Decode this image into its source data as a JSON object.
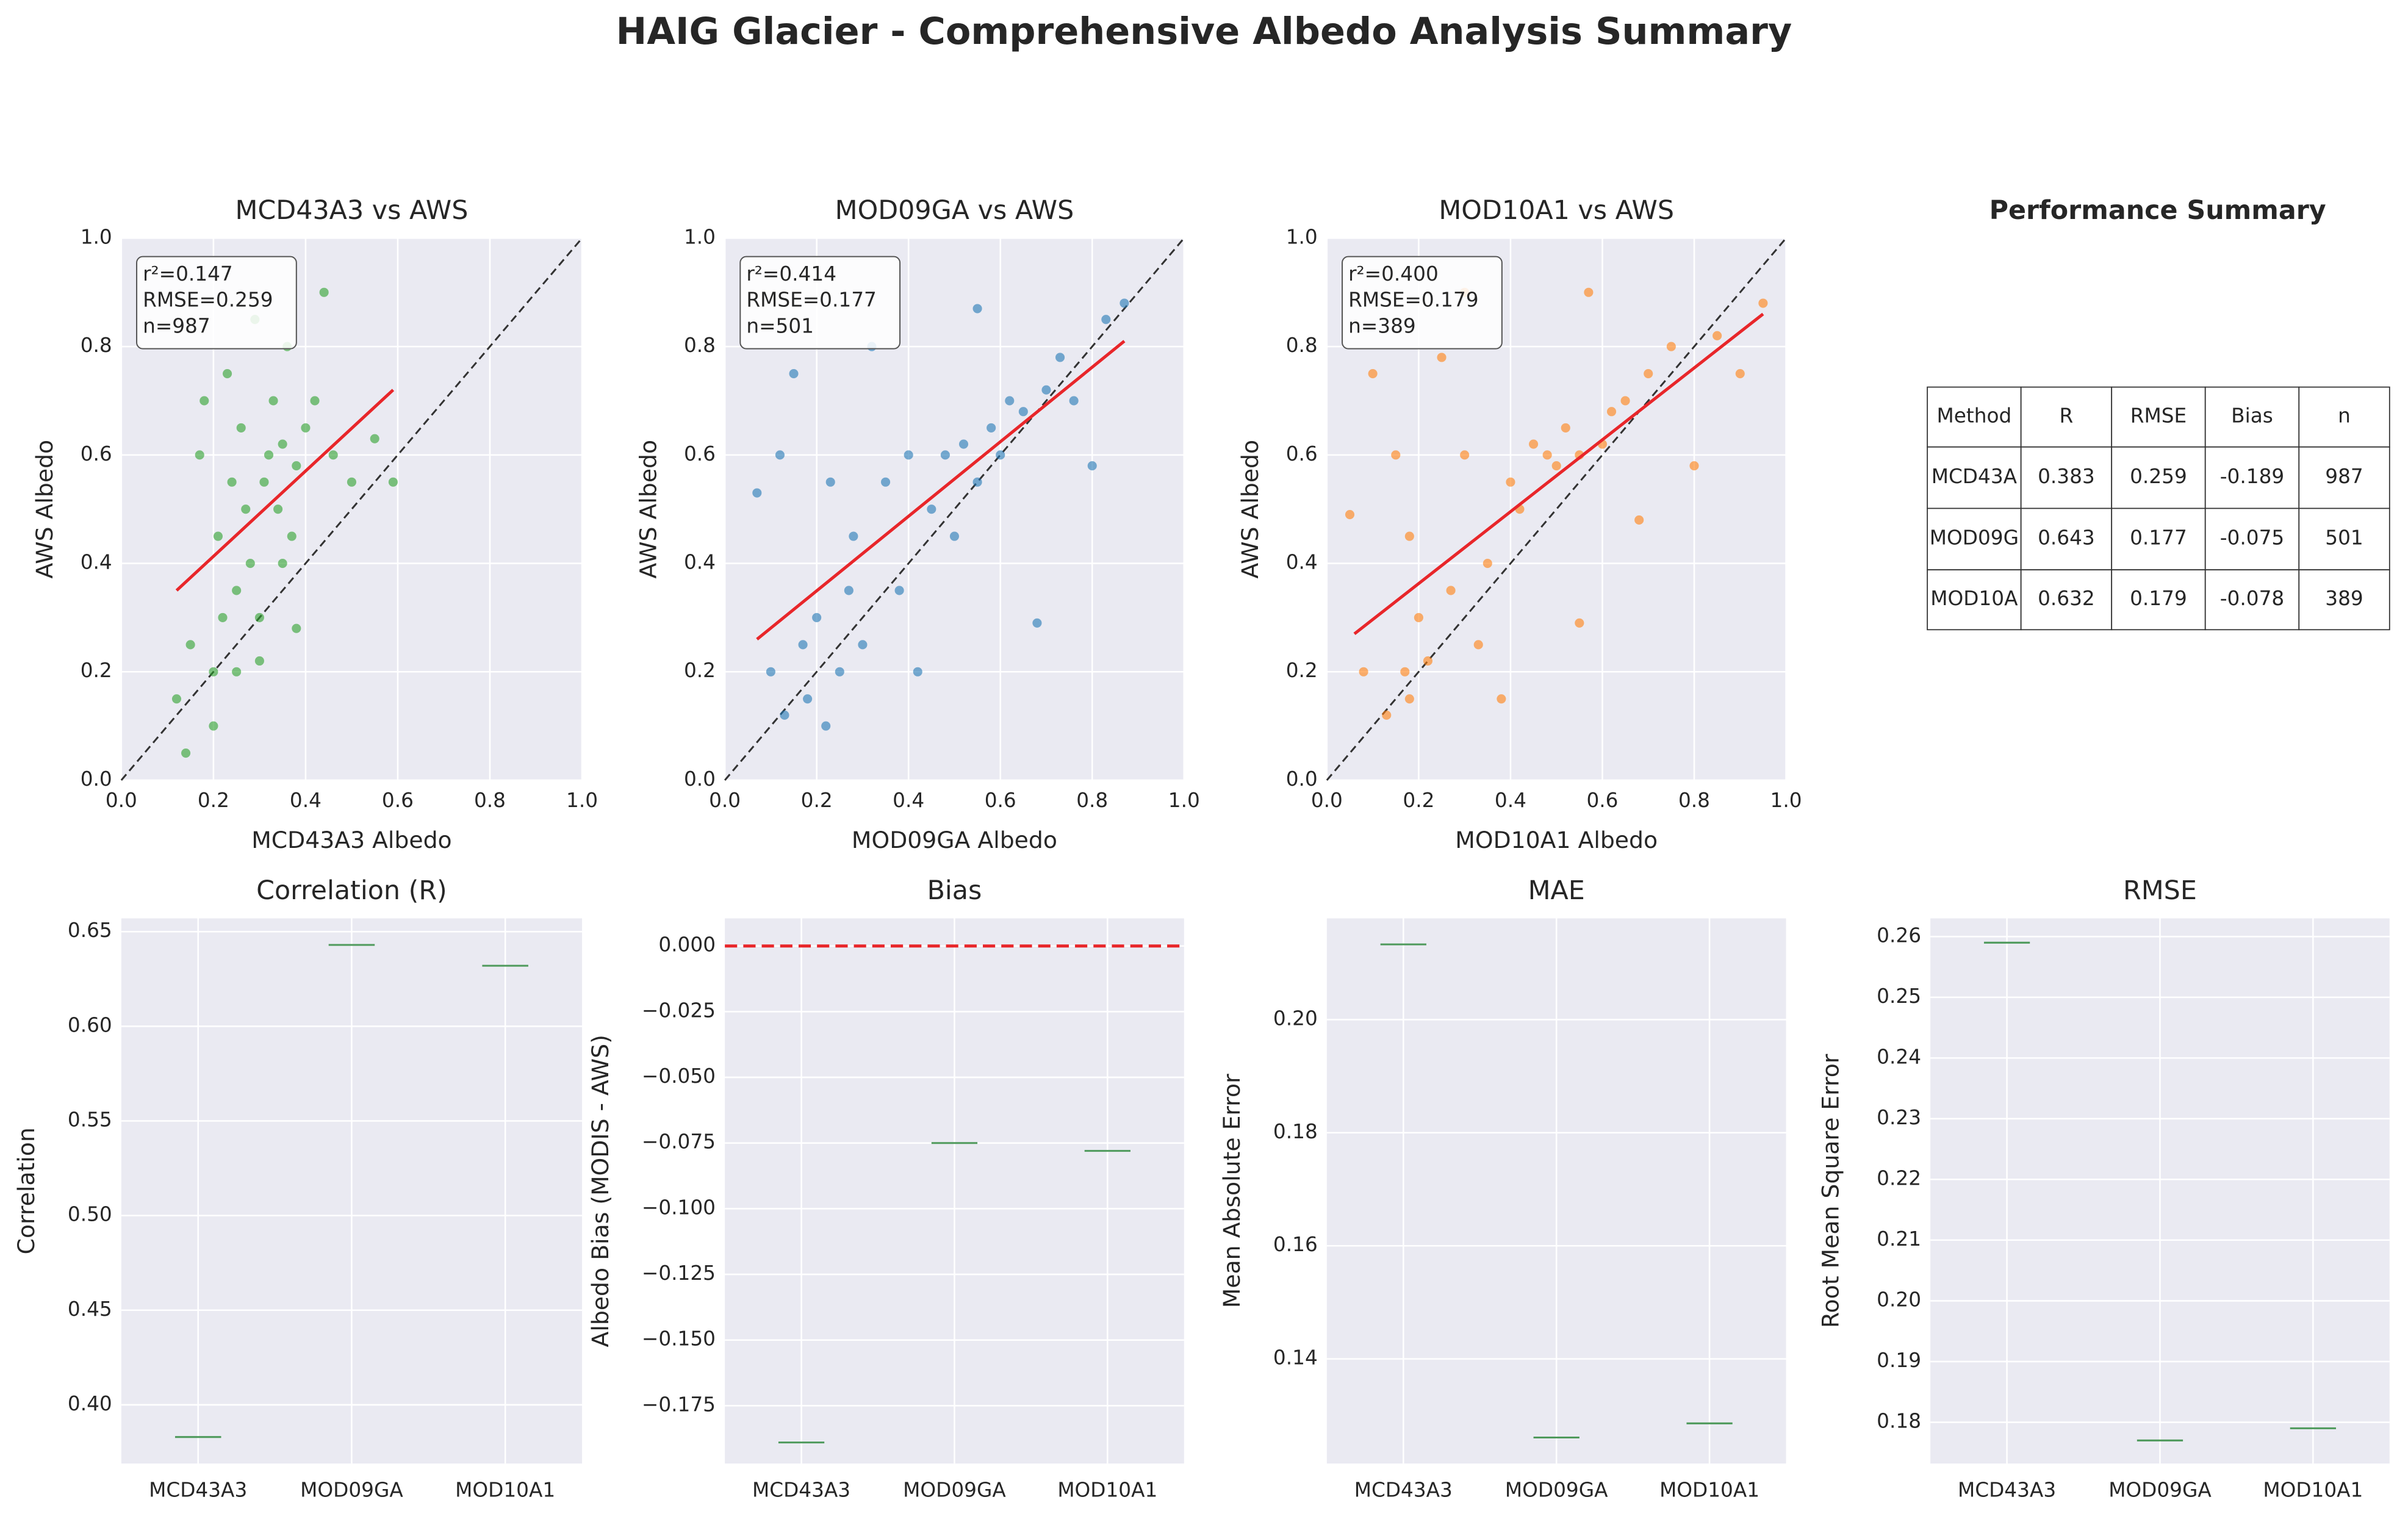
{
  "title": "HAIG Glacier - Comprehensive Albedo Analysis Summary",
  "chart_data": [
    {
      "type": "scatter",
      "title": "MCD43A3 vs AWS",
      "xlabel": "MCD43A3 Albedo",
      "ylabel": "AWS Albedo",
      "color": "#2ca02c",
      "annotation": [
        "r²=0.147",
        "RMSE=0.259",
        "n=987"
      ],
      "x": [
        0.12,
        0.15,
        0.17,
        0.18,
        0.2,
        0.21,
        0.22,
        0.23,
        0.24,
        0.25,
        0.26,
        0.27,
        0.28,
        0.29,
        0.3,
        0.31,
        0.32,
        0.33,
        0.34,
        0.35,
        0.36,
        0.37,
        0.38,
        0.4,
        0.42,
        0.44,
        0.46,
        0.5,
        0.55,
        0.59,
        0.2,
        0.25,
        0.3,
        0.35,
        0.38,
        0.14
      ],
      "values": [
        0.15,
        0.25,
        0.6,
        0.7,
        0.2,
        0.45,
        0.3,
        0.75,
        0.55,
        0.2,
        0.65,
        0.5,
        0.4,
        0.85,
        0.3,
        0.55,
        0.6,
        0.7,
        0.5,
        0.62,
        0.8,
        0.45,
        0.58,
        0.65,
        0.7,
        0.9,
        0.6,
        0.55,
        0.63,
        0.55,
        0.1,
        0.35,
        0.22,
        0.4,
        0.28,
        0.05
      ],
      "fit_line": {
        "x": [
          0.12,
          0.59
        ],
        "values": [
          0.35,
          0.72
        ],
        "color": "#e8262a"
      },
      "xlim": [
        0,
        1
      ],
      "ylim": [
        0,
        1
      ],
      "xticks": [
        {
          "value": 0,
          "label": "0.0"
        },
        {
          "value": 0.2,
          "label": "0.2"
        },
        {
          "value": 0.4,
          "label": "0.4"
        },
        {
          "value": 0.6,
          "label": "0.6"
        },
        {
          "value": 0.8,
          "label": "0.8"
        },
        {
          "value": 1,
          "label": "1.0"
        }
      ],
      "yticks": [
        {
          "value": 0,
          "label": "0.0"
        },
        {
          "value": 0.2,
          "label": "0.2"
        },
        {
          "value": 0.4,
          "label": "0.4"
        },
        {
          "value": 0.6,
          "label": "0.6"
        },
        {
          "value": 0.8,
          "label": "0.8"
        },
        {
          "value": 1,
          "label": "1.0"
        }
      ]
    },
    {
      "type": "scatter",
      "title": "MOD09GA vs AWS",
      "xlabel": "MOD09GA Albedo",
      "ylabel": "AWS Albedo",
      "color": "#1f77b4",
      "annotation": [
        "r²=0.414",
        "RMSE=0.177",
        "n=501"
      ],
      "x": [
        0.07,
        0.1,
        0.13,
        0.15,
        0.17,
        0.18,
        0.2,
        0.22,
        0.23,
        0.25,
        0.27,
        0.3,
        0.32,
        0.35,
        0.38,
        0.4,
        0.42,
        0.45,
        0.48,
        0.5,
        0.52,
        0.55,
        0.58,
        0.6,
        0.62,
        0.65,
        0.68,
        0.7,
        0.73,
        0.76,
        0.8,
        0.83,
        0.87,
        0.12,
        0.28,
        0.55
      ],
      "values": [
        0.53,
        0.2,
        0.12,
        0.75,
        0.25,
        0.15,
        0.3,
        0.1,
        0.55,
        0.2,
        0.35,
        0.25,
        0.8,
        0.55,
        0.35,
        0.6,
        0.2,
        0.5,
        0.6,
        0.45,
        0.62,
        0.55,
        0.65,
        0.6,
        0.7,
        0.68,
        0.29,
        0.72,
        0.78,
        0.7,
        0.58,
        0.85,
        0.88,
        0.6,
        0.45,
        0.87
      ],
      "fit_line": {
        "x": [
          0.07,
          0.87
        ],
        "values": [
          0.26,
          0.81
        ],
        "color": "#e8262a"
      },
      "xlim": [
        0,
        1
      ],
      "ylim": [
        0,
        1
      ],
      "xticks": [
        {
          "value": 0,
          "label": "0.0"
        },
        {
          "value": 0.2,
          "label": "0.2"
        },
        {
          "value": 0.4,
          "label": "0.4"
        },
        {
          "value": 0.6,
          "label": "0.6"
        },
        {
          "value": 0.8,
          "label": "0.8"
        },
        {
          "value": 1,
          "label": "1.0"
        }
      ],
      "yticks": [
        {
          "value": 0,
          "label": "0.0"
        },
        {
          "value": 0.2,
          "label": "0.2"
        },
        {
          "value": 0.4,
          "label": "0.4"
        },
        {
          "value": 0.6,
          "label": "0.6"
        },
        {
          "value": 0.8,
          "label": "0.8"
        },
        {
          "value": 1,
          "label": "1.0"
        }
      ]
    },
    {
      "type": "scatter",
      "title": "MOD10A1 vs AWS",
      "xlabel": "MOD10A1 Albedo",
      "ylabel": "AWS Albedo",
      "color": "#ff7f0e",
      "annotation": [
        "r²=0.400",
        "RMSE=0.179",
        "n=389"
      ],
      "x": [
        0.05,
        0.08,
        0.1,
        0.13,
        0.15,
        0.17,
        0.18,
        0.2,
        0.22,
        0.25,
        0.27,
        0.3,
        0.33,
        0.35,
        0.38,
        0.4,
        0.42,
        0.45,
        0.48,
        0.5,
        0.52,
        0.55,
        0.57,
        0.6,
        0.62,
        0.65,
        0.68,
        0.7,
        0.75,
        0.8,
        0.85,
        0.9,
        0.95,
        0.18,
        0.3,
        0.55
      ],
      "values": [
        0.49,
        0.2,
        0.75,
        0.12,
        0.6,
        0.2,
        0.15,
        0.3,
        0.22,
        0.78,
        0.35,
        0.6,
        0.25,
        0.4,
        0.15,
        0.55,
        0.5,
        0.62,
        0.6,
        0.58,
        0.65,
        0.6,
        0.9,
        0.62,
        0.68,
        0.7,
        0.48,
        0.75,
        0.8,
        0.58,
        0.82,
        0.75,
        0.88,
        0.45,
        0.9,
        0.29
      ],
      "fit_line": {
        "x": [
          0.06,
          0.95
        ],
        "values": [
          0.27,
          0.86
        ],
        "color": "#e8262a"
      },
      "xlim": [
        0,
        1
      ],
      "ylim": [
        0,
        1
      ],
      "xticks": [
        {
          "value": 0,
          "label": "0.0"
        },
        {
          "value": 0.2,
          "label": "0.2"
        },
        {
          "value": 0.4,
          "label": "0.4"
        },
        {
          "value": 0.6,
          "label": "0.6"
        },
        {
          "value": 0.8,
          "label": "0.8"
        },
        {
          "value": 1,
          "label": "1.0"
        }
      ],
      "yticks": [
        {
          "value": 0,
          "label": "0.0"
        },
        {
          "value": 0.2,
          "label": "0.2"
        },
        {
          "value": 0.4,
          "label": "0.4"
        },
        {
          "value": 0.6,
          "label": "0.6"
        },
        {
          "value": 0.8,
          "label": "0.8"
        },
        {
          "value": 1,
          "label": "1.0"
        }
      ]
    },
    {
      "type": "box",
      "title": "Correlation (R)",
      "ylabel": "Correlation",
      "color": "#4f9a5c",
      "categories": [
        "MCD43A3",
        "MOD09GA",
        "MOD10A1"
      ],
      "values": [
        0.383,
        0.643,
        0.632
      ],
      "ylim": [
        0.369,
        0.657
      ],
      "yticks": [
        {
          "value": 0.4,
          "label": "0.40"
        },
        {
          "value": 0.45,
          "label": "0.45"
        },
        {
          "value": 0.5,
          "label": "0.50"
        },
        {
          "value": 0.55,
          "label": "0.55"
        },
        {
          "value": 0.6,
          "label": "0.60"
        },
        {
          "value": 0.65,
          "label": "0.65"
        }
      ]
    },
    {
      "type": "box",
      "title": "Bias",
      "ylabel": "Albedo Bias (MODIS - AWS)",
      "color": "#4f9a5c",
      "categories": [
        "MCD43A3",
        "MOD09GA",
        "MOD10A1"
      ],
      "values": [
        -0.189,
        -0.075,
        -0.078
      ],
      "reference_line": 0,
      "reference_color": "#e8262a",
      "ylim": [
        -0.197,
        0.0105
      ],
      "yticks": [
        {
          "value": 0,
          "label": "0.000"
        },
        {
          "value": -0.025,
          "label": "−0.025"
        },
        {
          "value": -0.05,
          "label": "−0.050"
        },
        {
          "value": -0.075,
          "label": "−0.075"
        },
        {
          "value": -0.1,
          "label": "−0.100"
        },
        {
          "value": -0.125,
          "label": "−0.125"
        },
        {
          "value": -0.15,
          "label": "−0.150"
        },
        {
          "value": -0.175,
          "label": "−0.175"
        }
      ]
    },
    {
      "type": "box",
      "title": "MAE",
      "ylabel": "Mean Absolute Error",
      "color": "#4f9a5c",
      "categories": [
        "MCD43A3",
        "MOD09GA",
        "MOD10A1"
      ],
      "values": [
        0.2133,
        0.1261,
        0.1286
      ],
      "ylim": [
        0.1215,
        0.2179
      ],
      "yticks": [
        {
          "value": 0.14,
          "label": "0.14"
        },
        {
          "value": 0.16,
          "label": "0.16"
        },
        {
          "value": 0.18,
          "label": "0.18"
        },
        {
          "value": 0.2,
          "label": "0.20"
        }
      ]
    },
    {
      "type": "box",
      "title": "RMSE",
      "ylabel": "Root Mean Square Error",
      "color": "#4f9a5c",
      "categories": [
        "MCD43A3",
        "MOD09GA",
        "MOD10A1"
      ],
      "values": [
        0.259,
        0.177,
        0.179
      ],
      "ylim": [
        0.1732,
        0.263
      ],
      "yticks": [
        {
          "value": 0.18,
          "label": "0.18"
        },
        {
          "value": 0.19,
          "label": "0.19"
        },
        {
          "value": 0.2,
          "label": "0.20"
        },
        {
          "value": 0.21,
          "label": "0.21"
        },
        {
          "value": 0.22,
          "label": "0.22"
        },
        {
          "value": 0.23,
          "label": "0.23"
        },
        {
          "value": 0.24,
          "label": "0.24"
        },
        {
          "value": 0.25,
          "label": "0.25"
        },
        {
          "value": 0.26,
          "label": "0.26"
        }
      ]
    }
  ],
  "table": {
    "title": "Performance Summary",
    "columns": [
      "Method",
      "R",
      "RMSE",
      "Bias",
      "n"
    ],
    "rows": [
      [
        "MCD43A",
        0.383,
        0.259,
        -0.189,
        987
      ],
      [
        "MOD09G",
        0.643,
        0.177,
        -0.075,
        501
      ],
      [
        "MOD10A",
        0.632,
        0.179,
        -0.078,
        389
      ]
    ]
  }
}
